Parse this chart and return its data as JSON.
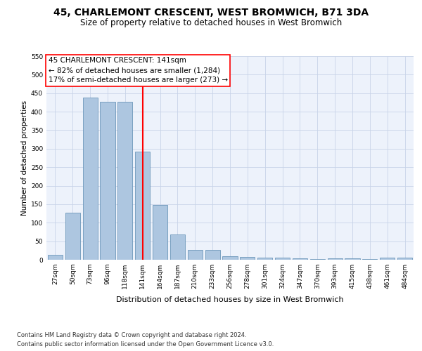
{
  "title": "45, CHARLEMONT CRESCENT, WEST BROMWICH, B71 3DA",
  "subtitle": "Size of property relative to detached houses in West Bromwich",
  "xlabel": "Distribution of detached houses by size in West Bromwich",
  "ylabel": "Number of detached properties",
  "footer_line1": "Contains HM Land Registry data © Crown copyright and database right 2024.",
  "footer_line2": "Contains public sector information licensed under the Open Government Licence v3.0.",
  "annotation_line1": "45 CHARLEMONT CRESCENT: 141sqm",
  "annotation_line2": "← 82% of detached houses are smaller (1,284)",
  "annotation_line3": "17% of semi-detached houses are larger (273) →",
  "property_size": 141,
  "bar_categories": [
    "27sqm",
    "50sqm",
    "73sqm",
    "96sqm",
    "118sqm",
    "141sqm",
    "164sqm",
    "187sqm",
    "210sqm",
    "233sqm",
    "256sqm",
    "278sqm",
    "301sqm",
    "324sqm",
    "347sqm",
    "370sqm",
    "393sqm",
    "415sqm",
    "438sqm",
    "461sqm",
    "484sqm"
  ],
  "bar_values": [
    13,
    127,
    438,
    426,
    426,
    292,
    147,
    68,
    27,
    27,
    10,
    8,
    5,
    5,
    4,
    1,
    4,
    4,
    1,
    6,
    6
  ],
  "bar_color": "#adc6e0",
  "bar_edge_color": "#5a8ab0",
  "reference_line_x": 5,
  "reference_color": "red",
  "ylim": [
    0,
    550
  ],
  "yticks": [
    0,
    50,
    100,
    150,
    200,
    250,
    300,
    350,
    400,
    450,
    500,
    550
  ],
  "bg_color": "#edf2fb",
  "grid_color": "#c8d4e8",
  "title_fontsize": 10,
  "subtitle_fontsize": 8.5,
  "xlabel_fontsize": 8,
  "ylabel_fontsize": 7.5,
  "tick_fontsize": 6.5,
  "annotation_fontsize": 7.5,
  "footer_fontsize": 6
}
